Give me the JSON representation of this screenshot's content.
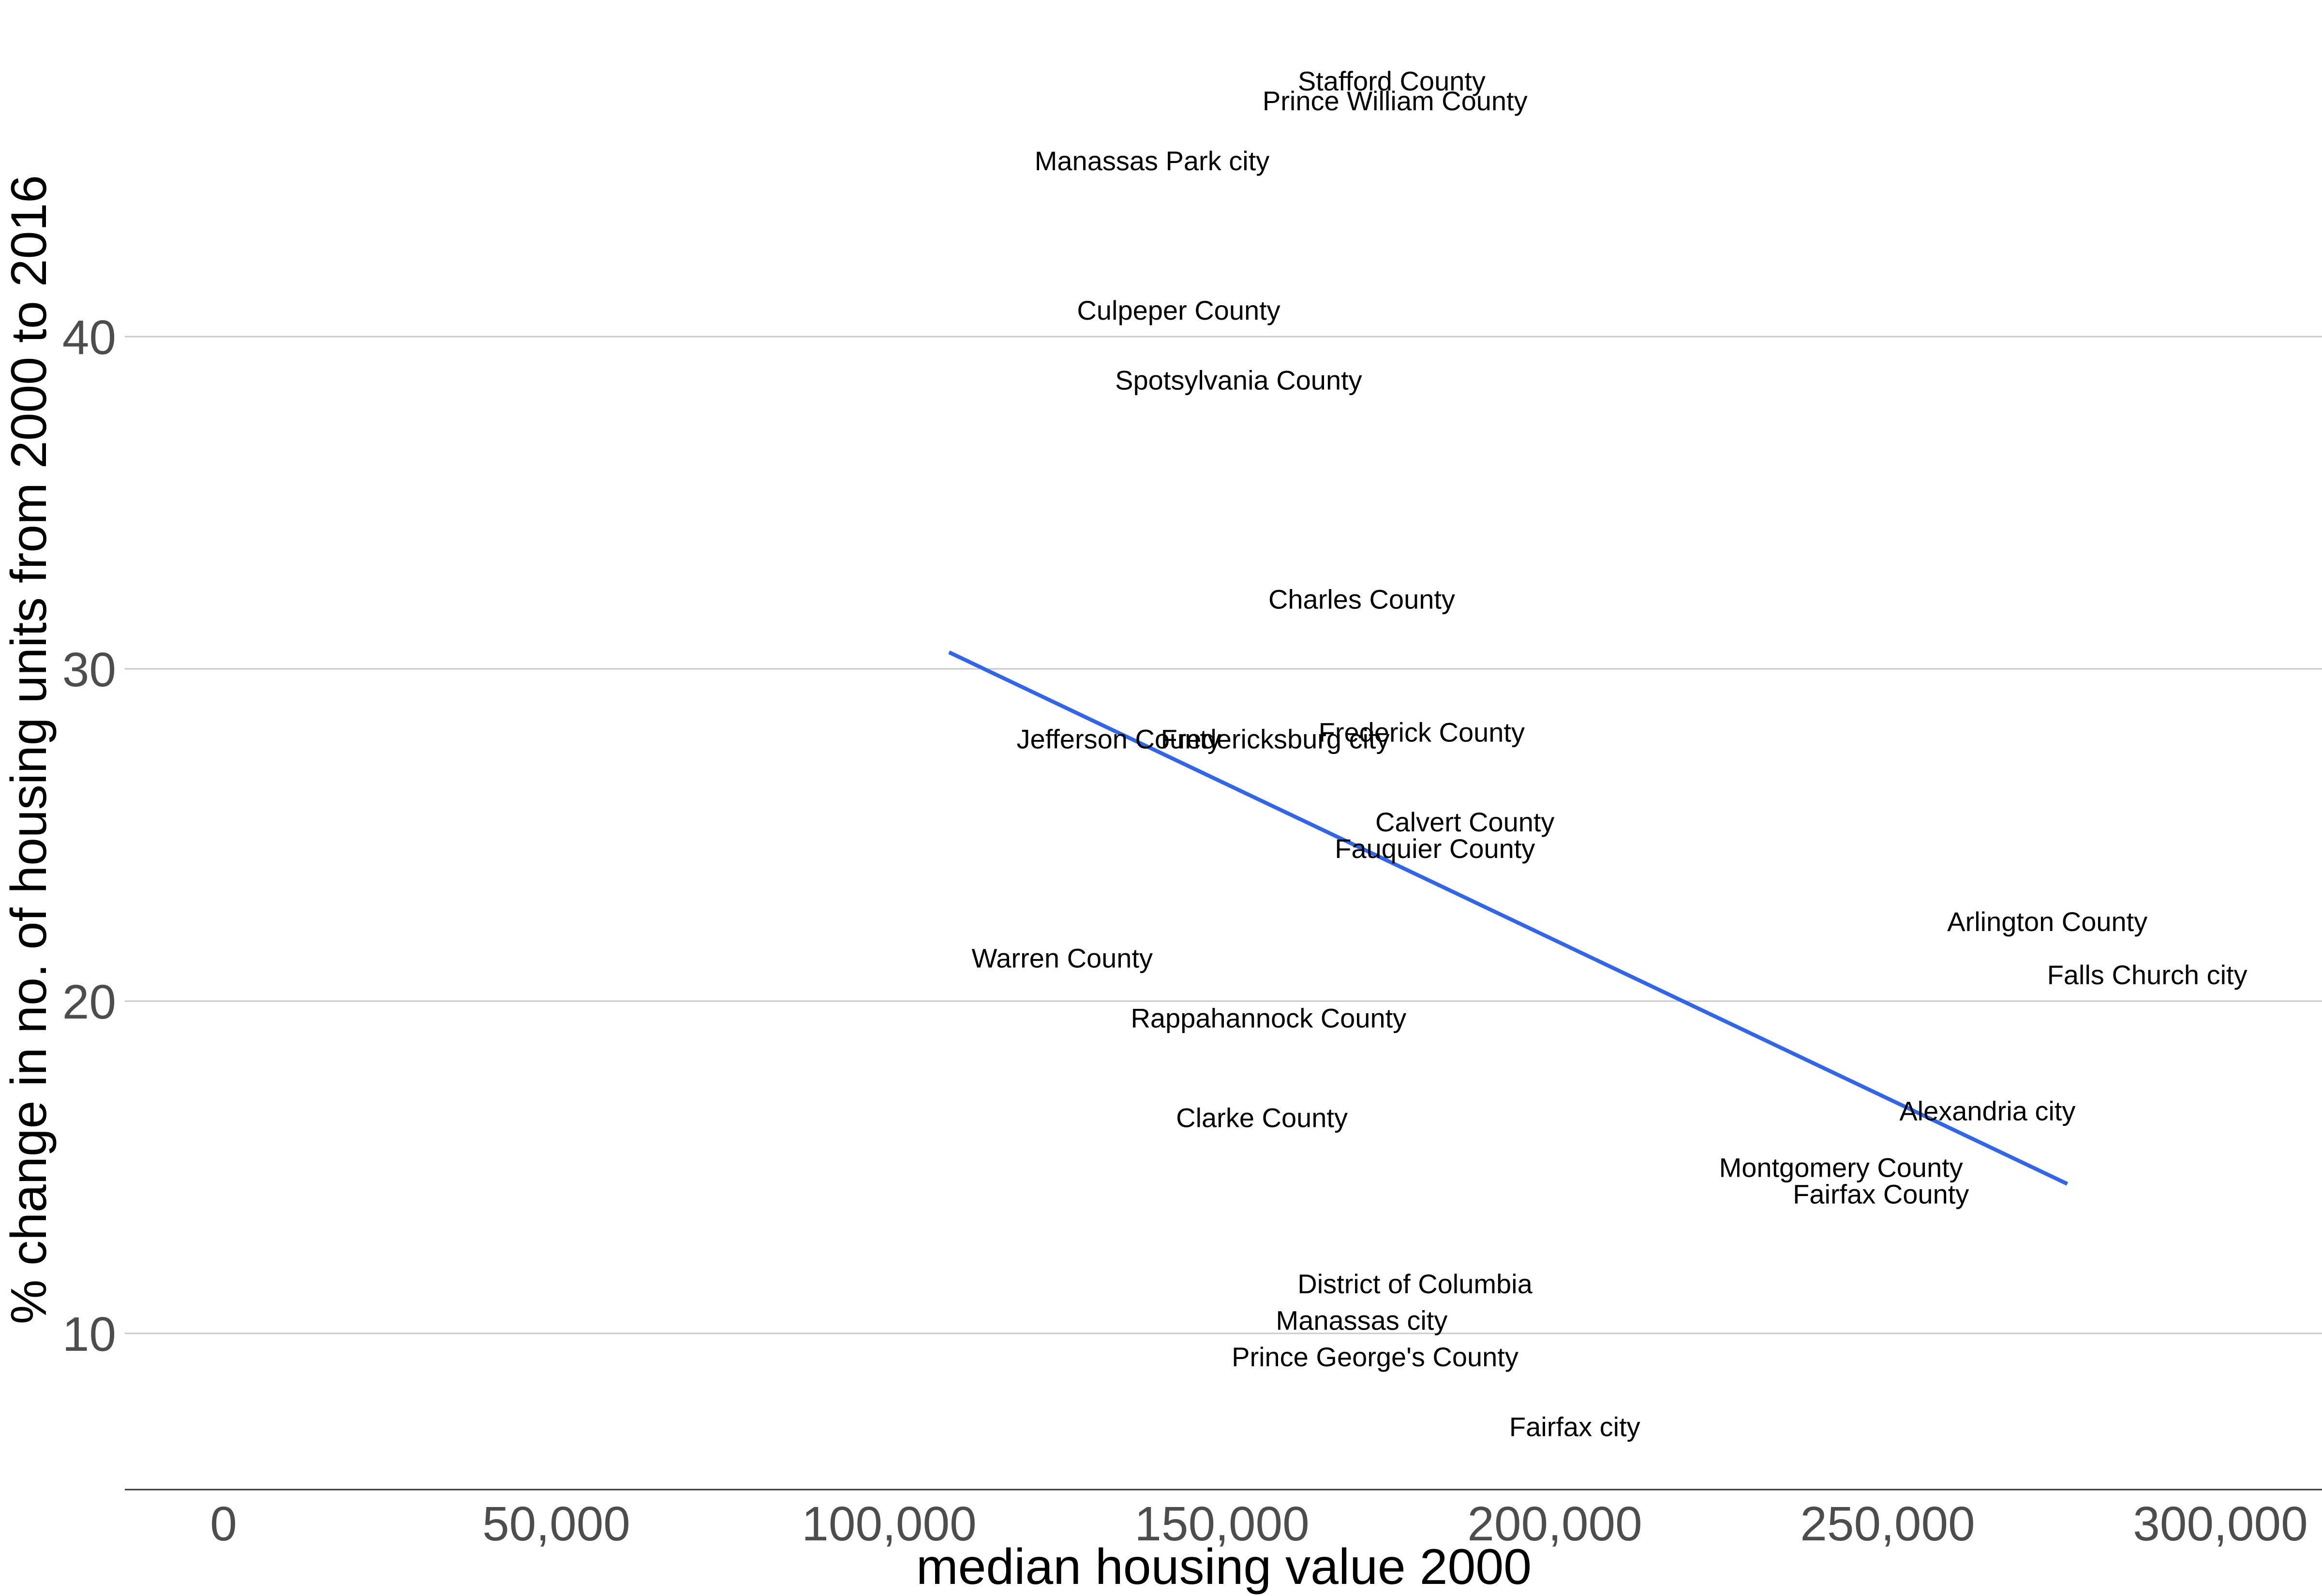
{
  "chart_data": {
    "type": "scatter",
    "title": "",
    "xlabel": "median housing value 2000",
    "ylabel": "% change in no. of housing units from 2000 to 2016",
    "xlim": [
      -3000,
      315000
    ],
    "ylim": [
      5,
      48.5
    ],
    "x_ticks": [
      0,
      50000,
      100000,
      150000,
      200000,
      250000,
      300000
    ],
    "x_tick_labels": [
      "0",
      "50,000",
      "100,000",
      "150,000",
      "200,000",
      "250,000",
      "300,000"
    ],
    "y_ticks": [
      10,
      20,
      30,
      40
    ],
    "y_tick_labels": [
      "10",
      "20",
      "30",
      "40"
    ],
    "grid": "horizontal major lines",
    "trend_line": {
      "x": [
        109000,
        277000
      ],
      "y": [
        30.5,
        14.5
      ],
      "color": "#3366e6"
    },
    "points": [
      {
        "label": "Stafford County",
        "x": 175500,
        "y": 47.7
      },
      {
        "label": "Prince William County",
        "x": 176000,
        "y": 47.1
      },
      {
        "label": "Manassas Park city",
        "x": 139500,
        "y": 45.3
      },
      {
        "label": "Culpeper County",
        "x": 143500,
        "y": 40.8
      },
      {
        "label": "Spotsylvania County",
        "x": 152500,
        "y": 38.7
      },
      {
        "label": "Charles County",
        "x": 171000,
        "y": 32.1
      },
      {
        "label": "Jefferson County",
        "x": 134500,
        "y": 27.9
      },
      {
        "label": "Fredericksburg city",
        "x": 158000,
        "y": 27.9
      },
      {
        "label": "Frederick County",
        "x": 180000,
        "y": 28.1
      },
      {
        "label": "Calvert County",
        "x": 186500,
        "y": 25.4
      },
      {
        "label": "Fauquier County",
        "x": 182000,
        "y": 24.6
      },
      {
        "label": "Arlington County",
        "x": 274000,
        "y": 22.4
      },
      {
        "label": "Falls Church city",
        "x": 289000,
        "y": 20.8
      },
      {
        "label": "Warren County",
        "x": 126000,
        "y": 21.3
      },
      {
        "label": "Rappahannock County",
        "x": 157000,
        "y": 19.5
      },
      {
        "label": "Alexandria city",
        "x": 265000,
        "y": 16.7
      },
      {
        "label": "Clarke County",
        "x": 156000,
        "y": 16.5
      },
      {
        "label": "Montgomery County",
        "x": 243000,
        "y": 15.0
      },
      {
        "label": "Fairfax County",
        "x": 249000,
        "y": 14.2
      },
      {
        "label": "District of Columbia",
        "x": 179000,
        "y": 11.5
      },
      {
        "label": "Manassas city",
        "x": 171000,
        "y": 10.4
      },
      {
        "label": "Prince George's County",
        "x": 173000,
        "y": 9.3
      },
      {
        "label": "Fairfax city",
        "x": 203000,
        "y": 7.2
      }
    ]
  }
}
